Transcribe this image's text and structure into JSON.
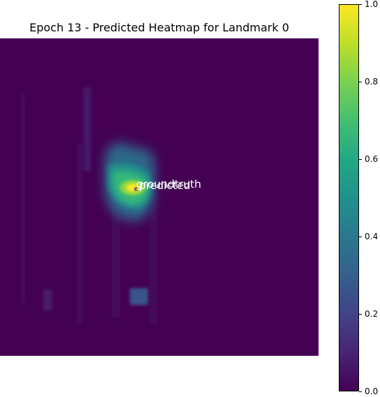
{
  "chart_data": {
    "type": "heatmap",
    "title": "Epoch 13 - Predicted Heatmap for Landmark 0",
    "colormap": "viridis",
    "value_range": [
      0,
      1
    ],
    "colorbar_ticks": [
      "0.0",
      "0.2",
      "0.4",
      "0.6",
      "0.8",
      "1.0"
    ],
    "grid": false,
    "axes_visible": false,
    "points": [
      {
        "label": "groundtruth",
        "marker_color": "#1f77b4",
        "text_color": "#ffffff"
      },
      {
        "label": "predicted",
        "marker_color": "#ff7f0e",
        "text_color": "#ffffff"
      }
    ],
    "hotspots": [
      {
        "name": "peak",
        "intensity": 1.0
      },
      {
        "name": "main-blob",
        "intensity": 0.6
      },
      {
        "name": "lower-patch",
        "intensity": 0.3
      },
      {
        "name": "vertical-streaks",
        "intensity": 0.1
      }
    ]
  }
}
